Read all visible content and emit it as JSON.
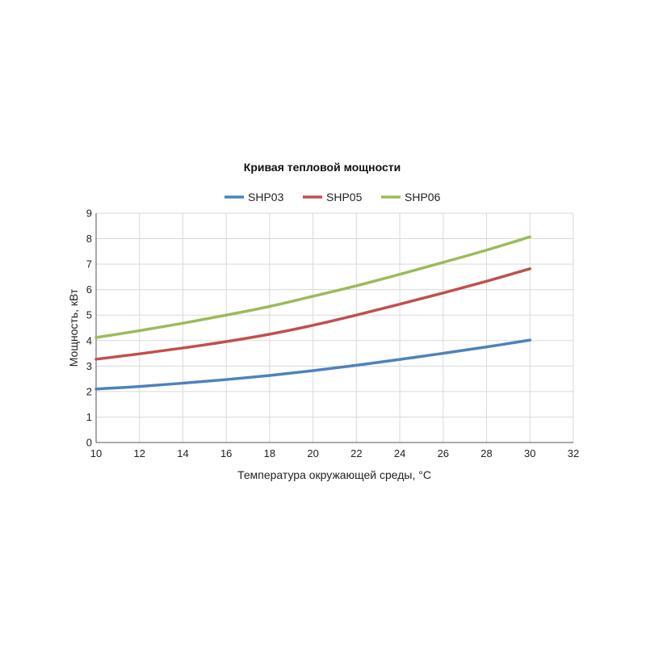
{
  "chart_data": {
    "type": "line",
    "title": "Кривая тепловой мощности",
    "xlabel": "Температура окружающей среды, °С",
    "ylabel": "Мощность, кВт",
    "xlim": [
      10,
      32
    ],
    "ylim": [
      0,
      9
    ],
    "x_ticks": [
      10,
      12,
      14,
      16,
      18,
      20,
      22,
      24,
      26,
      28,
      30,
      32
    ],
    "y_ticks": [
      0,
      1,
      2,
      3,
      4,
      5,
      6,
      7,
      8,
      9
    ],
    "grid": true,
    "legend_position": "top",
    "x": [
      10,
      12,
      14,
      16,
      18,
      20,
      22,
      24,
      26,
      28,
      30
    ],
    "series": [
      {
        "name": "SHP03",
        "color": "#4f81bd",
        "values": [
          2.1,
          2.2,
          2.33,
          2.47,
          2.63,
          2.82,
          3.03,
          3.26,
          3.5,
          3.75,
          4.02
        ]
      },
      {
        "name": "SHP05",
        "color": "#c0504d",
        "values": [
          3.27,
          3.48,
          3.71,
          3.96,
          4.25,
          4.6,
          5.0,
          5.43,
          5.87,
          6.33,
          6.82
        ]
      },
      {
        "name": "SHP06",
        "color": "#9bbb59",
        "values": [
          4.12,
          4.39,
          4.68,
          5.0,
          5.34,
          5.74,
          6.15,
          6.6,
          7.07,
          7.55,
          8.07
        ]
      }
    ]
  }
}
